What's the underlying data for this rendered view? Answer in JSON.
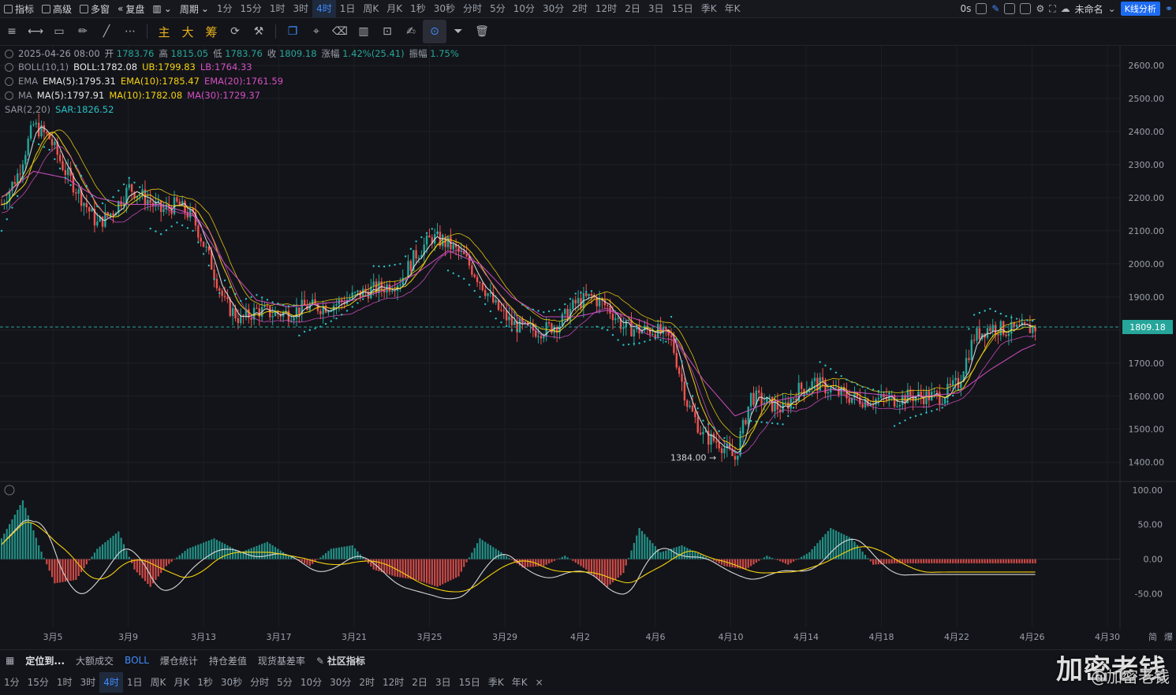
{
  "toolbar": {
    "indicators_label": "指标",
    "advanced_label": "高级",
    "multiwindow_label": "多窗",
    "replay_label": "复盘",
    "period_label": "周期",
    "timeframes": [
      "1分",
      "15分",
      "1时",
      "3时",
      "4时",
      "1日",
      "周K",
      "月K",
      "1秒",
      "30秒",
      "分时",
      "5分",
      "10分",
      "30分",
      "2时",
      "12时",
      "2日",
      "3日",
      "15日",
      "季K",
      "年K"
    ],
    "active_timeframe": "4时",
    "latency": "0s",
    "untitled_label": "未命名",
    "kline_analysis_label": "K线分析"
  },
  "drawing_tools": {
    "main_label": "主",
    "big_label": "大",
    "chip_label": "筹"
  },
  "ohlc": {
    "date": "2025-04-26 08:00",
    "open_label": "开",
    "open": "1783.76",
    "high_label": "高",
    "high": "1815.05",
    "low_label": "低",
    "low": "1783.76",
    "close_label": "收",
    "close": "1809.18",
    "change_label": "涨幅",
    "change": "1.42%(25.41)",
    "amplitude_label": "振幅",
    "amplitude": "1.75%"
  },
  "indicators": {
    "boll": {
      "name": "BOLL(10,1)",
      "mid": "BOLL:1782.08",
      "ub": "UB:1799.83",
      "lb": "LB:1764.33"
    },
    "ema": {
      "name": "EMA",
      "ema5": "EMA(5):1795.31",
      "ema10": "EMA(10):1785.47",
      "ema20": "EMA(20):1761.59"
    },
    "ma": {
      "name": "MA",
      "ma5": "MA(5):1797.91",
      "ma10": "MA(10):1782.08",
      "ma30": "MA(30):1729.37"
    },
    "sar": {
      "name": "SAR(2,20)",
      "value": "SAR:1826.52"
    }
  },
  "colors": {
    "up": "#26a69a",
    "down": "#ef5350",
    "ema5": "#e6e6e6",
    "ema10": "#f5d10f",
    "ema20": "#d44fc4",
    "sar": "#28c2c8",
    "accent": "#3f8cff"
  },
  "chart_data": {
    "type": "candlestick",
    "price_axis": [
      "2600.00",
      "2500.00",
      "2400.00",
      "2300.00",
      "2200.00",
      "2100.00",
      "2000.00",
      "1900.00",
      "1800.00",
      "1700.00",
      "1600.00",
      "1500.00",
      "1400.00"
    ],
    "ylim": [
      1385,
      2655
    ],
    "current_price": "1809.18",
    "low_annotation": "1384.00",
    "x_labels": [
      "3月5",
      "3月9",
      "3月13",
      "3月17",
      "3月21",
      "3月25",
      "3月29",
      "4月2",
      "4月6",
      "4月10",
      "4月14",
      "4月18",
      "4月22",
      "4月26",
      "4月30"
    ],
    "macd_axis": [
      "100.00",
      "50.00",
      "0.00",
      "-50.00"
    ],
    "macd_ylim": [
      -95,
      110
    ],
    "price_path": [
      [
        0,
        2180
      ],
      [
        6,
        2270
      ],
      [
        12,
        2420
      ],
      [
        18,
        2380
      ],
      [
        24,
        2280
      ],
      [
        30,
        2200
      ],
      [
        36,
        2120
      ],
      [
        42,
        2160
      ],
      [
        48,
        2230
      ],
      [
        54,
        2200
      ],
      [
        60,
        2160
      ],
      [
        66,
        2180
      ],
      [
        72,
        2140
      ],
      [
        78,
        2020
      ],
      [
        84,
        1880
      ],
      [
        90,
        1830
      ],
      [
        96,
        1860
      ],
      [
        102,
        1850
      ],
      [
        108,
        1850
      ],
      [
        114,
        1870
      ],
      [
        120,
        1870
      ],
      [
        126,
        1880
      ],
      [
        132,
        1900
      ],
      [
        138,
        1920
      ],
      [
        144,
        1930
      ],
      [
        150,
        1950
      ],
      [
        156,
        2030
      ],
      [
        162,
        2080
      ],
      [
        168,
        2060
      ],
      [
        174,
        2020
      ],
      [
        180,
        1950
      ],
      [
        186,
        1870
      ],
      [
        192,
        1820
      ],
      [
        198,
        1800
      ],
      [
        204,
        1800
      ],
      [
        210,
        1820
      ],
      [
        216,
        1880
      ],
      [
        222,
        1900
      ],
      [
        228,
        1870
      ],
      [
        234,
        1810
      ],
      [
        240,
        1800
      ],
      [
        246,
        1800
      ],
      [
        252,
        1770
      ],
      [
        258,
        1580
      ],
      [
        264,
        1480
      ],
      [
        270,
        1460
      ],
      [
        276,
        1410
      ],
      [
        282,
        1600
      ],
      [
        288,
        1580
      ],
      [
        294,
        1560
      ],
      [
        300,
        1620
      ],
      [
        306,
        1640
      ],
      [
        312,
        1620
      ],
      [
        318,
        1600
      ],
      [
        324,
        1590
      ],
      [
        330,
        1590
      ],
      [
        336,
        1590
      ],
      [
        342,
        1600
      ],
      [
        348,
        1600
      ],
      [
        354,
        1600
      ],
      [
        360,
        1640
      ],
      [
        366,
        1780
      ],
      [
        372,
        1810
      ],
      [
        378,
        1800
      ],
      [
        384,
        1800
      ],
      [
        390,
        1809
      ]
    ],
    "ema20_path": [
      [
        0,
        2200
      ],
      [
        12,
        2280
      ],
      [
        24,
        2260
      ],
      [
        36,
        2200
      ],
      [
        48,
        2180
      ],
      [
        60,
        2180
      ],
      [
        72,
        2150
      ],
      [
        84,
        2000
      ],
      [
        96,
        1890
      ],
      [
        108,
        1870
      ],
      [
        120,
        1880
      ],
      [
        132,
        1890
      ],
      [
        144,
        1920
      ],
      [
        156,
        1970
      ],
      [
        168,
        2040
      ],
      [
        180,
        2000
      ],
      [
        192,
        1900
      ],
      [
        204,
        1840
      ],
      [
        216,
        1840
      ],
      [
        228,
        1860
      ],
      [
        240,
        1830
      ],
      [
        252,
        1790
      ],
      [
        264,
        1650
      ],
      [
        276,
        1540
      ],
      [
        288,
        1580
      ],
      [
        300,
        1600
      ],
      [
        312,
        1620
      ],
      [
        324,
        1610
      ],
      [
        336,
        1600
      ],
      [
        348,
        1600
      ],
      [
        360,
        1610
      ],
      [
        372,
        1680
      ],
      [
        384,
        1740
      ],
      [
        390,
        1760
      ]
    ],
    "macd_hist": [
      [
        0,
        30
      ],
      [
        8,
        85
      ],
      [
        14,
        20
      ],
      [
        20,
        -35
      ],
      [
        28,
        -30
      ],
      [
        36,
        15
      ],
      [
        44,
        40
      ],
      [
        50,
        -15
      ],
      [
        56,
        -40
      ],
      [
        62,
        -10
      ],
      [
        70,
        15
      ],
      [
        80,
        30
      ],
      [
        90,
        10
      ],
      [
        100,
        25
      ],
      [
        108,
        5
      ],
      [
        116,
        -10
      ],
      [
        124,
        15
      ],
      [
        132,
        20
      ],
      [
        140,
        -15
      ],
      [
        148,
        -25
      ],
      [
        156,
        -30
      ],
      [
        164,
        -40
      ],
      [
        172,
        -25
      ],
      [
        180,
        30
      ],
      [
        188,
        10
      ],
      [
        196,
        -12
      ],
      [
        204,
        -10
      ],
      [
        212,
        5
      ],
      [
        220,
        -15
      ],
      [
        228,
        -40
      ],
      [
        234,
        -20
      ],
      [
        240,
        45
      ],
      [
        248,
        10
      ],
      [
        256,
        20
      ],
      [
        264,
        5
      ],
      [
        272,
        -10
      ],
      [
        280,
        -15
      ],
      [
        288,
        5
      ],
      [
        296,
        -8
      ],
      [
        304,
        10
      ],
      [
        312,
        45
      ],
      [
        320,
        30
      ],
      [
        328,
        -8
      ],
      [
        336,
        -6
      ]
    ]
  },
  "bottom_bar": {
    "locate_label": "定位到...",
    "volume_label": "大额成交",
    "boll_label": "BOLL",
    "liq_label": "爆仓统计",
    "pos_label": "持仓差值",
    "basis_label": "现货基差率",
    "community_label": "社区指标"
  },
  "bottom_timeframes": [
    "1分",
    "15分",
    "1时",
    "3时",
    "4时",
    "1日",
    "周K",
    "月K",
    "1秒",
    "30秒",
    "分时",
    "5分",
    "10分",
    "30分",
    "2时",
    "12时",
    "2日",
    "3日",
    "15日",
    "季K",
    "年K"
  ],
  "right_bottom_label": "简",
  "right_bottom_label2": "爆",
  "watermark": "加密老钱",
  "watermark_sub": "@加密老钱"
}
